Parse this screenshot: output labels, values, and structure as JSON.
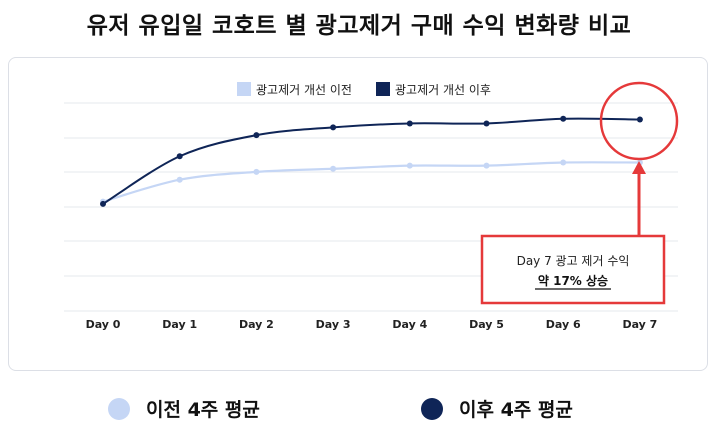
{
  "title": "유저 유입일 코호트 별 광고제거 구매 수익 변화량 비교",
  "chart_data": {
    "type": "line",
    "categories": [
      "Day 0",
      "Day 1",
      "Day 2",
      "Day 3",
      "Day 4",
      "Day 5",
      "Day 6",
      "Day 7"
    ],
    "series": [
      {
        "name": "광고제거 개선 이전",
        "color": "#c5d6f5",
        "values": [
          0.3,
          0.58,
          0.68,
          0.72,
          0.76,
          0.76,
          0.8,
          0.8
        ]
      },
      {
        "name": "광고제거 개선 이후",
        "color": "#0f2557",
        "values": [
          0.27,
          0.88,
          1.15,
          1.25,
          1.3,
          1.3,
          1.36,
          1.35
        ]
      }
    ],
    "ylim": [
      -1.1,
      1.6
    ],
    "grid": true,
    "legend_position": "top-center"
  },
  "annotation": {
    "line1": "Day 7 광고 제거 수익",
    "line2": "약 17% 상승",
    "color": "#e5393a"
  },
  "bottom_legend": [
    {
      "label": "이전 4주 평균",
      "color": "#c5d6f5"
    },
    {
      "label": "이후 4주 평균",
      "color": "#0f2557"
    }
  ]
}
